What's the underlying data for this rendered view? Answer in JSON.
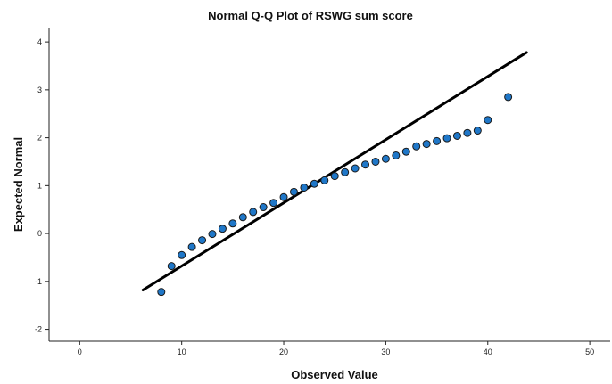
{
  "chart_data": {
    "type": "scatter",
    "title": "Normal Q-Q Plot of RSWG sum score",
    "xlabel": "Observed Value",
    "ylabel": "Expected Normal",
    "xlim": [
      -3,
      52
    ],
    "ylim": [
      -2.25,
      4.3
    ],
    "x_ticks": [
      {
        "value": 0,
        "label": "0"
      },
      {
        "value": 10,
        "label": "10"
      },
      {
        "value": 20,
        "label": "20"
      },
      {
        "value": 30,
        "label": "30"
      },
      {
        "value": 40,
        "label": "40"
      },
      {
        "value": 50,
        "label": "50"
      }
    ],
    "y_ticks": [
      {
        "value": -2,
        "label": "-2"
      },
      {
        "value": -1,
        "label": "-1"
      },
      {
        "value": 0,
        "label": "0"
      },
      {
        "value": 1,
        "label": "1"
      },
      {
        "value": 2,
        "label": "2"
      },
      {
        "value": 3,
        "label": "3"
      },
      {
        "value": 4,
        "label": "4"
      }
    ],
    "series": [
      {
        "points": [
          {
            "x": 8,
            "y": -1.22
          },
          {
            "x": 9,
            "y": -0.68
          },
          {
            "x": 10,
            "y": -0.45
          },
          {
            "x": 11,
            "y": -0.28
          },
          {
            "x": 12,
            "y": -0.14
          },
          {
            "x": 13,
            "y": -0.01
          },
          {
            "x": 14,
            "y": 0.1
          },
          {
            "x": 15,
            "y": 0.21
          },
          {
            "x": 16,
            "y": 0.34
          },
          {
            "x": 17,
            "y": 0.45
          },
          {
            "x": 18,
            "y": 0.55
          },
          {
            "x": 19,
            "y": 0.64
          },
          {
            "x": 20,
            "y": 0.76
          },
          {
            "x": 21,
            "y": 0.87
          },
          {
            "x": 22,
            "y": 0.96
          },
          {
            "x": 23,
            "y": 1.04
          },
          {
            "x": 24,
            "y": 1.11
          },
          {
            "x": 25,
            "y": 1.2
          },
          {
            "x": 26,
            "y": 1.28
          },
          {
            "x": 27,
            "y": 1.36
          },
          {
            "x": 28,
            "y": 1.44
          },
          {
            "x": 29,
            "y": 1.5
          },
          {
            "x": 30,
            "y": 1.56
          },
          {
            "x": 31,
            "y": 1.63
          },
          {
            "x": 32,
            "y": 1.71
          },
          {
            "x": 33,
            "y": 1.82
          },
          {
            "x": 34,
            "y": 1.87
          },
          {
            "x": 35,
            "y": 1.93
          },
          {
            "x": 36,
            "y": 1.99
          },
          {
            "x": 37,
            "y": 2.04
          },
          {
            "x": 38,
            "y": 2.1
          },
          {
            "x": 39,
            "y": 2.15
          },
          {
            "x": 40,
            "y": 2.37
          },
          {
            "x": 42,
            "y": 2.85
          }
        ]
      }
    ],
    "reference_line": {
      "x1": 6.2,
      "y1": -1.18,
      "x2": 43.8,
      "y2": 3.78
    },
    "grid": false,
    "legend": "none",
    "colors": {
      "point_fill": "#1f77c8",
      "point_stroke": "#1a1a1a",
      "reference_line": "#000000"
    }
  }
}
